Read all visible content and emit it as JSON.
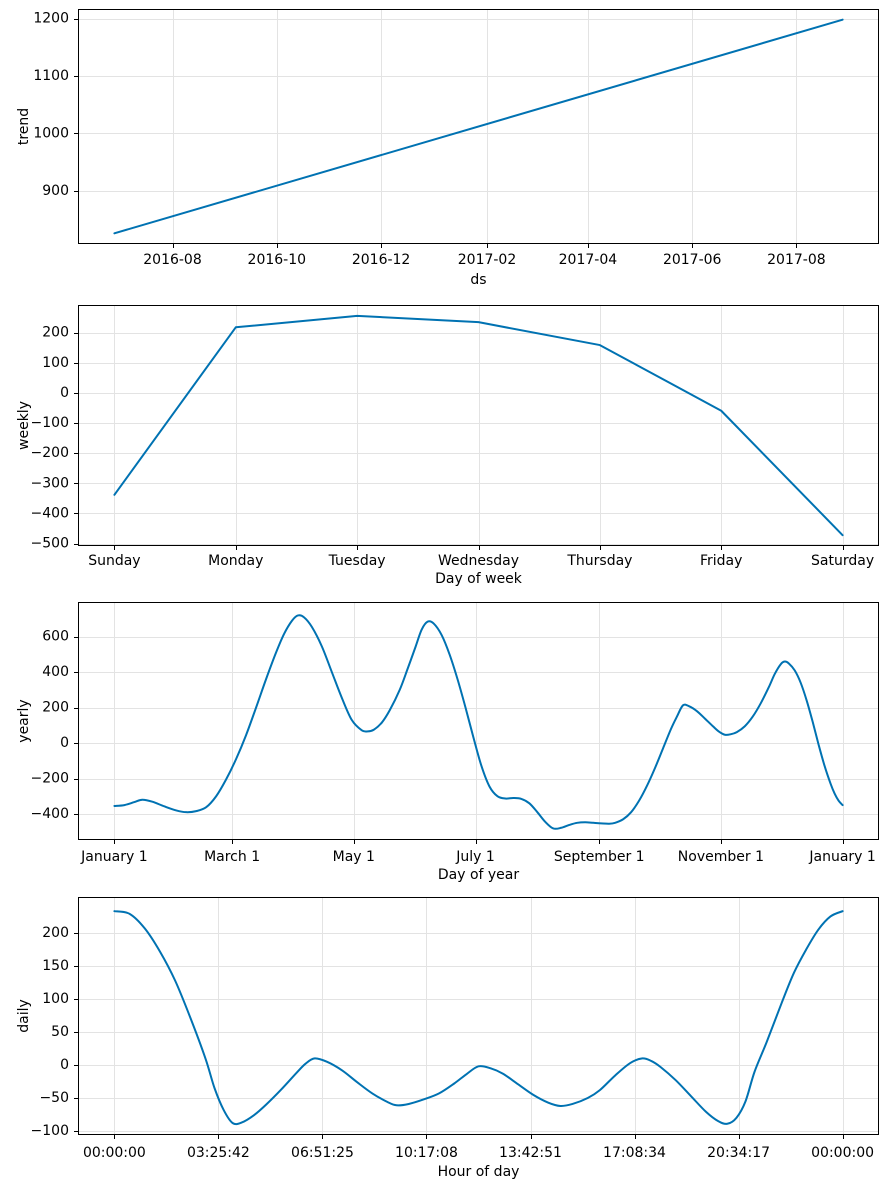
{
  "figure": {
    "background": "#ffffff",
    "line_color": "#0072B2",
    "grid_color": "#e3e3e3",
    "spine_color": "#000000",
    "text_color": "#000000"
  },
  "chart_data": [
    {
      "type": "line",
      "name": "trend",
      "title": "",
      "xlabel": "ds",
      "ylabel": "trend",
      "smooth": false,
      "x": [
        0,
        426
      ],
      "y": [
        826,
        1198
      ],
      "xlim": [
        -21.3,
        447.3
      ],
      "ylim": [
        807.4,
        1216.6
      ],
      "yticks": [
        900,
        1000,
        1100,
        1200
      ],
      "xtick_pos": [
        34,
        95,
        156,
        218,
        277,
        338,
        399
      ],
      "xtick_labels": [
        "2016-08",
        "2016-10",
        "2016-12",
        "2017-02",
        "2017-04",
        "2017-06",
        "2017-08"
      ],
      "grid": true,
      "legend": "none"
    },
    {
      "type": "line",
      "name": "weekly",
      "title": "",
      "xlabel": "Day of week",
      "ylabel": "weekly",
      "smooth": false,
      "categories": [
        "Sunday",
        "Monday",
        "Tuesday",
        "Wednesday",
        "Thursday",
        "Friday",
        "Saturday"
      ],
      "x": [
        0,
        1,
        2,
        3,
        4,
        5,
        6
      ],
      "y": [
        -338,
        218,
        256,
        235,
        159,
        -59,
        -472
      ],
      "xlim": [
        -0.3,
        6.3
      ],
      "ylim": [
        -508,
        292
      ],
      "yticks": [
        200,
        100,
        0,
        -100,
        -200,
        -300,
        -400,
        -500
      ],
      "xtick_pos": [
        0,
        1,
        2,
        3,
        4,
        5,
        6
      ],
      "xtick_labels": [
        "Sunday",
        "Monday",
        "Tuesday",
        "Wednesday",
        "Thursday",
        "Friday",
        "Saturday"
      ],
      "grid": true,
      "legend": "none"
    },
    {
      "type": "line",
      "name": "yearly",
      "title": "",
      "xlabel": "Day of year",
      "ylabel": "yearly",
      "smooth": true,
      "x": [
        0,
        5,
        10,
        14,
        19,
        25,
        31,
        36,
        41,
        46,
        51,
        56,
        61,
        66,
        71,
        76,
        81,
        85,
        89,
        92,
        95,
        99,
        104,
        109,
        114,
        119,
        124,
        127,
        130,
        134,
        138,
        143,
        147,
        151,
        154,
        157,
        160,
        164,
        168,
        172,
        176,
        180,
        184,
        188,
        192,
        196,
        200,
        204,
        208,
        212,
        216,
        220,
        224,
        228,
        232,
        236,
        240,
        244,
        248,
        251,
        255,
        259,
        263,
        267,
        271,
        275,
        279,
        282,
        285,
        288,
        292,
        296,
        300,
        303,
        306,
        309,
        312,
        316,
        320,
        324,
        328,
        331,
        334,
        336,
        338,
        341,
        344,
        347,
        350,
        353,
        356,
        359,
        361,
        363,
        365
      ],
      "y": [
        -355,
        -350,
        -333,
        -320,
        -331,
        -357,
        -380,
        -390,
        -384,
        -362,
        -300,
        -205,
        -90,
        45,
        200,
        360,
        510,
        615,
        690,
        720,
        710,
        655,
        545,
        400,
        255,
        130,
        72,
        66,
        75,
        115,
        185,
        300,
        420,
        545,
        640,
        685,
        675,
        610,
        500,
        360,
        200,
        30,
        -130,
        -245,
        -300,
        -313,
        -310,
        -315,
        -340,
        -390,
        -445,
        -482,
        -478,
        -462,
        -450,
        -447,
        -450,
        -453,
        -455,
        -450,
        -430,
        -390,
        -325,
        -240,
        -140,
        -30,
        80,
        150,
        213,
        208,
        180,
        138,
        95,
        65,
        47,
        50,
        62,
        95,
        150,
        225,
        315,
        390,
        445,
        460,
        450,
        410,
        340,
        240,
        120,
        -10,
        -130,
        -230,
        -285,
        -325,
        -350
      ],
      "xlim": [
        -18.25,
        383.25
      ],
      "ylim": [
        -547,
        796
      ],
      "yticks": [
        600,
        400,
        200,
        0,
        -200,
        -400
      ],
      "xtick_pos": [
        0,
        59,
        120,
        181,
        243,
        304,
        365
      ],
      "xtick_labels": [
        "January 1",
        "March 1",
        "May 1",
        "July 1",
        "September 1",
        "November 1",
        "January 1"
      ],
      "grid": true,
      "legend": "none"
    },
    {
      "type": "line",
      "name": "daily",
      "title": "",
      "xlabel": "Hour of day",
      "ylabel": "daily",
      "smooth": true,
      "x": [
        0,
        0.5,
        1,
        1.5,
        2,
        2.5,
        3,
        3.3,
        3.6,
        3.9,
        4.2,
        4.6,
        5,
        5.5,
        6,
        6.3,
        6.6,
        7,
        7.5,
        8,
        8.5,
        9,
        9.3,
        9.7,
        10.2,
        10.7,
        11.2,
        11.6,
        12,
        12.4,
        12.8,
        13.3,
        13.8,
        14.3,
        14.7,
        15.1,
        15.6,
        16,
        16.5,
        17,
        17.4,
        17.7,
        18,
        18.5,
        19,
        19.5,
        19.9,
        20.2,
        20.5,
        20.8,
        21.1,
        21.5,
        22,
        22.4,
        22.8,
        23.2,
        23.6,
        24
      ],
      "y": [
        233,
        229,
        207,
        172,
        128,
        72,
        10,
        -35,
        -68,
        -88,
        -87,
        -76,
        -60,
        -37,
        -12,
        2,
        10,
        5,
        -8,
        -26,
        -43,
        -56,
        -61,
        -59,
        -52,
        -43,
        -28,
        -14,
        -2,
        -5,
        -13,
        -29,
        -45,
        -57,
        -62,
        -59,
        -50,
        -38,
        -16,
        3,
        10,
        6,
        -3,
        -23,
        -47,
        -71,
        -85,
        -89,
        -80,
        -55,
        -10,
        35,
        95,
        140,
        175,
        205,
        225,
        233
      ],
      "xlim": [
        -1.2,
        25.2
      ],
      "ylim": [
        -106,
        254.5
      ],
      "yticks": [
        200,
        150,
        100,
        50,
        0,
        -50,
        -100
      ],
      "xtick_pos": [
        0,
        3.42857,
        6.85714,
        10.28571,
        13.71429,
        17.14286,
        20.57143,
        24
      ],
      "xtick_labels": [
        "00:00:00",
        "03:25:42",
        "06:51:25",
        "10:17:08",
        "13:42:51",
        "17:08:34",
        "20:34:17",
        "00:00:00"
      ],
      "grid": true,
      "legend": "none"
    }
  ]
}
